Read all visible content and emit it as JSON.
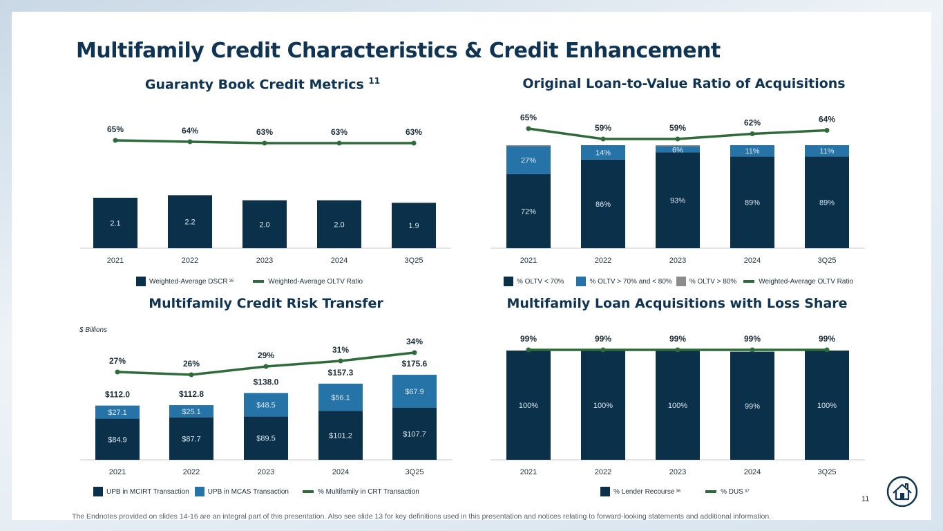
{
  "title": "Multifamily Credit Characteristics & Credit Enhancement",
  "footnote": "The Endnotes provided on slides 14-16 are an integral part of this presentation. Also see slide 13 for key definitions used in this presentation and notices relating to forward-looking statements and additional information.",
  "page_number": "11",
  "logo_icon": "house-logo-icon",
  "panels": {
    "guaranty": {
      "title": "Guaranty Book Credit Metrics",
      "title_note": "11"
    },
    "oltv": {
      "title": "Original Loan-to-Value Ratio of Acquisitions"
    },
    "crt": {
      "title": "Multifamily Credit Risk Transfer",
      "unit_note": "$ Billions"
    },
    "loss_share": {
      "title": "Multifamily Loan Acquisitions with Loss Share"
    }
  },
  "colors": {
    "navy": "#0b3049",
    "blue": "#2673a8",
    "gray": "#8c8c8c",
    "green": "#2f6b3a",
    "axis": "#c8c8c8"
  },
  "chart_data": [
    {
      "type": "bar",
      "title": "Guaranty Book Credit Metrics",
      "categories": [
        "2021",
        "2022",
        "2023",
        "2024",
        "3Q25"
      ],
      "series": [
        {
          "name": "Weighted-Average DSCR",
          "name_note": "35",
          "kind": "bar",
          "values": [
            2.1,
            2.2,
            2.0,
            2.0,
            1.9
          ],
          "labels": [
            "2.1",
            "2.2",
            "2.0",
            "2.0",
            "1.9"
          ]
        },
        {
          "name": "Weighted-Average OLTV Ratio",
          "kind": "line",
          "values": [
            65,
            64,
            63,
            63,
            63
          ],
          "labels": [
            "65%",
            "64%",
            "63%",
            "63%",
            "63%"
          ]
        }
      ],
      "legend": "bottom"
    },
    {
      "type": "bar",
      "stacked": true,
      "title": "Original Loan-to-Value Ratio of Acquisitions",
      "categories": [
        "2021",
        "2022",
        "2023",
        "2024",
        "3Q25"
      ],
      "series": [
        {
          "name": "% OLTV < 70%",
          "kind": "bar",
          "values": [
            72,
            86,
            93,
            89,
            89
          ],
          "labels": [
            "72%",
            "86%",
            "93%",
            "89%",
            "89%"
          ]
        },
        {
          "name": "% OLTV > 70% and < 80%",
          "kind": "bar",
          "values": [
            27,
            14,
            6,
            11,
            11
          ],
          "labels": [
            "27%",
            "14%",
            "6%",
            "11%",
            "11%"
          ]
        },
        {
          "name": "% OLTV > 80%",
          "kind": "bar",
          "values": [
            1,
            0,
            1,
            0,
            0
          ],
          "labels": []
        },
        {
          "name": "Weighted-Average OLTV Ratio",
          "kind": "line",
          "values": [
            65,
            59,
            59,
            62,
            64
          ],
          "labels": [
            "65%",
            "59%",
            "59%",
            "62%",
            "64%"
          ]
        }
      ],
      "legend": "bottom"
    },
    {
      "type": "bar",
      "stacked": true,
      "title": "Multifamily Credit Risk Transfer",
      "unit": "$ Billions",
      "categories": [
        "2021",
        "2022",
        "2023",
        "2024",
        "3Q25"
      ],
      "series": [
        {
          "name": "UPB in MCIRT Transaction",
          "kind": "bar",
          "values": [
            84.9,
            87.7,
            89.5,
            101.2,
            107.7
          ],
          "labels": [
            "$84.9",
            "$87.7",
            "$89.5",
            "$101.2",
            "$107.7"
          ]
        },
        {
          "name": "UPB in MCAS Transaction",
          "kind": "bar",
          "values": [
            27.1,
            25.1,
            48.5,
            56.1,
            67.9
          ],
          "labels": [
            "$27.1",
            "$25.1",
            "$48.5",
            "$56.1",
            "$67.9"
          ]
        },
        {
          "name": "% Multifamily in CRT Transaction",
          "kind": "line",
          "values": [
            27,
            26,
            29,
            31,
            34
          ],
          "labels": [
            "27%",
            "26%",
            "29%",
            "31%",
            "34%"
          ]
        }
      ],
      "totals": [
        112.0,
        112.8,
        138.0,
        157.3,
        175.6
      ],
      "total_labels": [
        "$112.0",
        "$112.8",
        "$138.0",
        "$157.3",
        "$175.6"
      ],
      "legend": "bottom"
    },
    {
      "type": "bar",
      "title": "Multifamily Loan Acquisitions with Loss Share",
      "categories": [
        "2021",
        "2022",
        "2023",
        "2024",
        "3Q25"
      ],
      "series": [
        {
          "name": "% Lender Recourse",
          "name_note": "36",
          "kind": "bar",
          "values": [
            100,
            100,
            100,
            99,
            100
          ],
          "labels": [
            "100%",
            "100%",
            "100%",
            "99%",
            "100%"
          ]
        },
        {
          "name": "% DUS",
          "name_note": "37",
          "kind": "line",
          "values": [
            99,
            99,
            99,
            99,
            99
          ],
          "labels": [
            "99%",
            "99%",
            "99%",
            "99%",
            "99%"
          ]
        }
      ],
      "legend": "bottom"
    }
  ]
}
